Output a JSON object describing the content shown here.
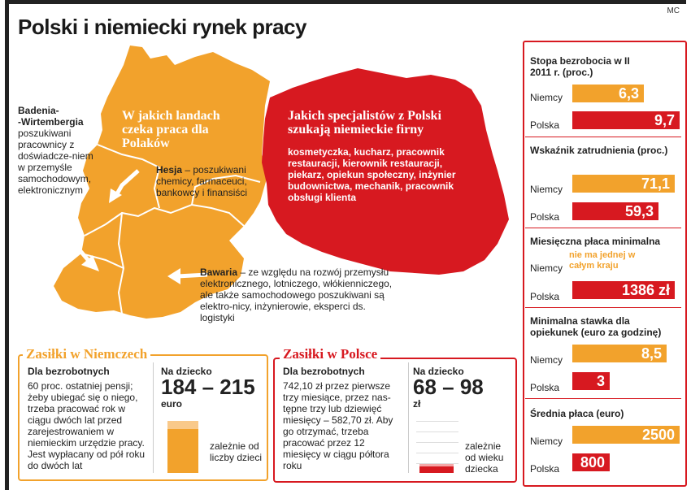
{
  "title": "Polski i niemiecki rynek pracy",
  "signature": "MC",
  "map": {
    "germany_heading": "W jakich landach czeka praca dla Polaków",
    "poland_heading": "Jakich specjalistów z Polski szukają niemieckie firny",
    "poland_jobs": "kosmetyczka, kucharz, pracownik restauracji, kierownik restauracji, piekarz, opiekun społeczny, inżynier budownictwa, mechanik, pracownik obsługi klienta",
    "badenia": {
      "name": "Badenia-\n-Wirtembergia",
      "desc": "poszukiwani pracownicy z doświadcze-niem w przemyśle samochodowym, elektronicznym"
    },
    "hesja": {
      "name": "Hesja",
      "desc": " – poszukiwani chemicy, farmaceuci, bankowcy i finansiści"
    },
    "bawaria": {
      "name": "Bawaria",
      "desc": " – ze względu na rozwój przemysłu elektronicznego, lotniczego, włókienniczego, ale także samochodowego poszukiwani są elektro-nicy, inżynierowie, eksperci ds. logistyki"
    }
  },
  "de_benefits": {
    "title": "Zasiłki w Niemczech",
    "unemployed_head": "Dla bezrobotnych",
    "unemployed_text": "60 proc. ostatniej pensji; żeby ubiegać się o niego, trzeba pracować rok w ciągu dwóch lat przed zarejestrowaniem w niemieckim urzędzie pracy. Jest wypłacany od pół roku do dwóch lat",
    "child_head": "Na dziecko",
    "child_amount": "184 – 215",
    "child_unit": "euro",
    "child_note": "zależnie od liczby dzieci"
  },
  "pl_benefits": {
    "title": "Zasiłki w Polsce",
    "unemployed_head": "Dla bezrobotnych",
    "unemployed_text": "742,10 zł przez pierwsze trzy miesiące, przez nas-tępne trzy lub dziewięć miesięcy – 582,70 zł. Aby go otrzymać, trzeba pracować przez 12 miesięcy w ciągu półtora roku",
    "child_head": "Na dziecko",
    "child_amount": "68 – 98",
    "child_unit": "zł",
    "child_note": "zależnie od wieku dziecka"
  },
  "colors": {
    "orange": "#f2a22c",
    "red": "#d71920",
    "light_orange": "#f9c98a"
  },
  "stats": {
    "unemployment": {
      "title": "Stopa bezrobocia w II 2011 r. (proc.)",
      "niemcy_label": "Niemcy",
      "niemcy": "6,3",
      "niemcy_value": 6.3,
      "polska_label": "Polska",
      "polska": "9,7",
      "polska_value": 9.7
    },
    "employment": {
      "title": "Wskaźnik zatrudnienia (proc.)",
      "niemcy_label": "Niemcy",
      "niemcy": "71,1",
      "niemcy_value": 71.1,
      "polska_label": "Polska",
      "polska": "59,3",
      "polska_value": 59.3
    },
    "min_wage": {
      "title": "Miesięczna płaca minimalna",
      "niemcy_label": "Niemcy",
      "niemcy": "nie ma jednej w całym kraju",
      "polska_label": "Polska",
      "polska": "1386 zł",
      "polska_value": 1386
    },
    "care_rate": {
      "title": "Minimalna stawka dla opiekunek (euro za godzinę)",
      "niemcy_label": "Niemcy",
      "niemcy": "8,5",
      "niemcy_value": 8.5,
      "polska_label": "Polska",
      "polska": "3",
      "polska_value": 3
    },
    "avg_wage": {
      "title": "Średnia płaca (euro)",
      "niemcy_label": "Niemcy",
      "niemcy": "2500",
      "niemcy_value": 2500,
      "polska_label": "Polska",
      "polska": "800",
      "polska_value": 800
    }
  }
}
